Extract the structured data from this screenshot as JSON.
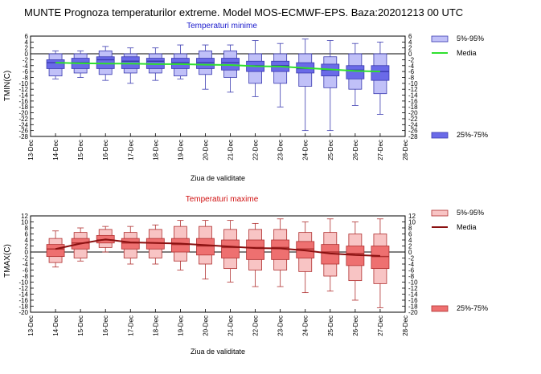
{
  "title": "MUNTE  Prognoza temperaturilor extreme.  Model MOS-ECMWF-EPS. Baza:20201213 00 UTC",
  "colors": {
    "min_light": "#c0c0f8",
    "min_dark": "#6a6ae8",
    "min_edge": "#3a3ab0",
    "min_title": "#1a1acc",
    "min_mean": "#2ee02e",
    "max_light": "#f8c4c4",
    "max_dark": "#ee7070",
    "max_edge": "#b03030",
    "max_title": "#d01010",
    "max_mean": "#8a1010"
  },
  "chart_data": [
    {
      "type": "boxplot",
      "title": "Temperaturi minime",
      "ylabel": "TMIN(C)",
      "xlabel": "Ziua de validitate",
      "ylim": [
        -28,
        6
      ],
      "y_ticks": [
        6,
        4,
        2,
        0,
        -2,
        -4,
        -6,
        -8,
        -10,
        -12,
        -14,
        -16,
        -18,
        -20,
        -22,
        -24,
        -26,
        -28
      ],
      "x_ticks": [
        "13-Dec",
        "14-Dec",
        "15-Dec",
        "16-Dec",
        "17-Dec",
        "18-Dec",
        "19-Dec",
        "20-Dec",
        "21-Dec",
        "22-Dec",
        "23-Dec",
        "24-Dec",
        "25-Dec",
        "26-Dec",
        "27-Dec",
        "28-Dec"
      ],
      "categories": [
        "14-Dec",
        "15-Dec",
        "16-Dec",
        "17-Dec",
        "18-Dec",
        "19-Dec",
        "20-Dec",
        "21-Dec",
        "22-Dec",
        "23-Dec",
        "24-Dec",
        "25-Dec",
        "26-Dec",
        "27-Dec"
      ],
      "whisker_low": [
        -8.5,
        -8,
        -9,
        -10,
        -9,
        -8.5,
        -12,
        -13,
        -14.5,
        -18,
        -26,
        -26,
        -17.5,
        -20.5
      ],
      "p5": [
        -7.5,
        -6.5,
        -7,
        -6.5,
        -6.5,
        -7.5,
        -7,
        -8,
        -10,
        -10,
        -11,
        -11.5,
        -12,
        -13.5
      ],
      "p25": [
        -5,
        -5,
        -5,
        -5,
        -5,
        -5,
        -5,
        -5.5,
        -6,
        -6,
        -6.5,
        -7.5,
        -8.5,
        -9
      ],
      "median": [
        -3,
        -3,
        -2,
        -2.5,
        -2.5,
        -3,
        -3,
        -3,
        -4,
        -4,
        -5,
        -5.5,
        -5.5,
        -6
      ],
      "p75": [
        -2,
        -1.5,
        -1,
        -1,
        -1.5,
        -1.5,
        -1.5,
        -1.5,
        -2.5,
        -2.5,
        -3,
        -3.5,
        -4,
        -4
      ],
      "p95": [
        0,
        0,
        1,
        0,
        0,
        0,
        1,
        1,
        0,
        0,
        0,
        -1,
        0,
        0
      ],
      "whisker_high": [
        1,
        1,
        2.5,
        2,
        2,
        3,
        3,
        3,
        4.5,
        3.5,
        5,
        4.5,
        3.5,
        4
      ],
      "mean": [
        -3,
        -3.2,
        -3.3,
        -3.3,
        -3.5,
        -3.5,
        -3.7,
        -3.8,
        -4.2,
        -4.3,
        -4.8,
        -5.3,
        -5.8,
        -6
      ],
      "legend": [
        "5%-95%",
        "Media",
        "25%-75%"
      ]
    },
    {
      "type": "boxplot",
      "title": "Temperaturi maxime",
      "ylabel": "TMAX(C)",
      "xlabel": "Ziua de validitate",
      "ylim": [
        -20,
        12
      ],
      "y_ticks": [
        12,
        10,
        8,
        6,
        4,
        2,
        0,
        -2,
        -4,
        -6,
        -8,
        -10,
        -12,
        -14,
        -16,
        -18,
        -20
      ],
      "x_ticks": [
        "13-Dec",
        "14-Dec",
        "15-Dec",
        "16-Dec",
        "17-Dec",
        "18-Dec",
        "19-Dec",
        "20-Dec",
        "21-Dec",
        "22-Dec",
        "23-Dec",
        "24-Dec",
        "25-Dec",
        "26-Dec",
        "27-Dec",
        "28-Dec"
      ],
      "categories": [
        "14-Dec",
        "15-Dec",
        "16-Dec",
        "17-Dec",
        "18-Dec",
        "19-Dec",
        "20-Dec",
        "21-Dec",
        "22-Dec",
        "23-Dec",
        "24-Dec",
        "25-Dec",
        "26-Dec",
        "27-Dec"
      ],
      "whisker_low": [
        -5,
        -3,
        0,
        -4,
        -4,
        -6,
        -9,
        -10,
        -11.5,
        -11.5,
        -13.5,
        -13,
        -16,
        -18.5
      ],
      "p5": [
        -3.5,
        -2,
        1.5,
        -2,
        -2,
        -3,
        -4,
        -5.5,
        -6,
        -6,
        -6.5,
        -8,
        -9.5,
        -10.5
      ],
      "p25": [
        -1.5,
        1,
        3,
        1,
        1,
        0,
        -1,
        -2,
        -2.5,
        -2.5,
        -2,
        -4,
        -4.5,
        -5.5
      ],
      "median": [
        1,
        3,
        4,
        3,
        3,
        2.5,
        2,
        1.5,
        1.5,
        1.5,
        1,
        0,
        -0.5,
        -1.5
      ],
      "p75": [
        2.5,
        4.5,
        5.5,
        4.5,
        4.5,
        4.5,
        4.5,
        4,
        4,
        4,
        3.5,
        2.5,
        2,
        2
      ],
      "p95": [
        4.5,
        6.5,
        7.5,
        6.5,
        7.5,
        8.5,
        8.5,
        7.5,
        7.5,
        7.5,
        6.5,
        6.5,
        6,
        6
      ],
      "whisker_high": [
        7,
        8,
        8.5,
        8.5,
        9,
        10.5,
        10.5,
        10.5,
        9.5,
        11,
        10,
        11,
        10,
        11
      ],
      "mean": [
        1,
        2.8,
        4.2,
        3.2,
        3,
        2.8,
        2.3,
        1.8,
        1.3,
        1.2,
        0.5,
        -0.5,
        -1,
        -1.3
      ],
      "legend": [
        "5%-95%",
        "Media",
        "25%-75%"
      ]
    }
  ]
}
